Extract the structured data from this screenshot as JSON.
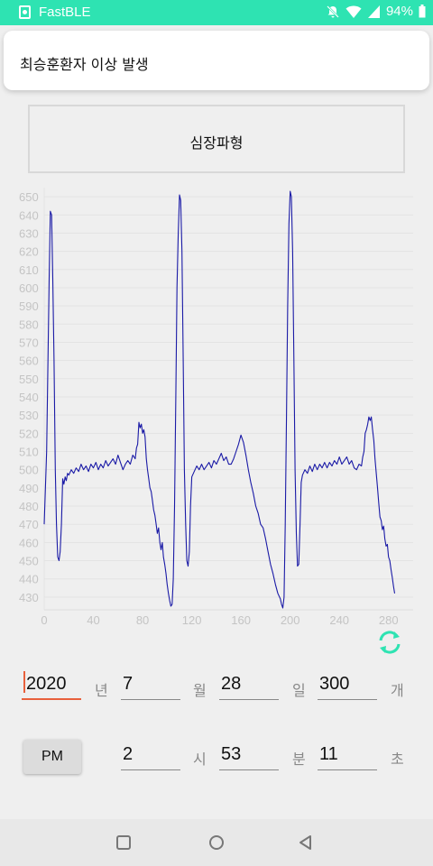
{
  "status_bar": {
    "app_name": "FastBLE",
    "battery": "94%",
    "icons": [
      "app-notification-icon",
      "mute-icon",
      "wifi-icon",
      "cellular-icon",
      "battery-icon"
    ],
    "color": "#2ee3b2"
  },
  "notification": {
    "text": "최승훈환자 이상 발생"
  },
  "title_box": {
    "label": "심장파형"
  },
  "chart_data": {
    "type": "line",
    "title": "",
    "xlabel": "",
    "ylabel": "",
    "xlim": [
      0,
      300
    ],
    "ylim": [
      423,
      655
    ],
    "x_ticks": [
      0,
      40,
      80,
      120,
      160,
      200,
      240,
      280
    ],
    "y_ticks": [
      430,
      440,
      450,
      460,
      470,
      480,
      490,
      500,
      510,
      520,
      530,
      540,
      550,
      560,
      570,
      580,
      590,
      600,
      610,
      620,
      630,
      640,
      650
    ],
    "grid": true,
    "line_color": "#1a1aa6",
    "series": [
      {
        "name": "",
        "points": [
          [
            0,
            470
          ],
          [
            2,
            510
          ],
          [
            4,
            605
          ],
          [
            5,
            642
          ],
          [
            6,
            640
          ],
          [
            7,
            605
          ],
          [
            8,
            560
          ],
          [
            9,
            500
          ],
          [
            10,
            470
          ],
          [
            11,
            452
          ],
          [
            12,
            450
          ],
          [
            13,
            455
          ],
          [
            14,
            470
          ],
          [
            15,
            495
          ],
          [
            16,
            492
          ],
          [
            17,
            496
          ],
          [
            18,
            494
          ],
          [
            19,
            498
          ],
          [
            20,
            497
          ],
          [
            22,
            500
          ],
          [
            24,
            498
          ],
          [
            26,
            501
          ],
          [
            28,
            499
          ],
          [
            30,
            503
          ],
          [
            32,
            500
          ],
          [
            34,
            502
          ],
          [
            36,
            499
          ],
          [
            38,
            503
          ],
          [
            40,
            501
          ],
          [
            42,
            504
          ],
          [
            44,
            500
          ],
          [
            46,
            503
          ],
          [
            48,
            501
          ],
          [
            50,
            505
          ],
          [
            52,
            502
          ],
          [
            54,
            504
          ],
          [
            56,
            506
          ],
          [
            58,
            503
          ],
          [
            60,
            508
          ],
          [
            62,
            504
          ],
          [
            64,
            500
          ],
          [
            66,
            503
          ],
          [
            68,
            505
          ],
          [
            70,
            503
          ],
          [
            72,
            508
          ],
          [
            74,
            506
          ],
          [
            75,
            512
          ],
          [
            76,
            514
          ],
          [
            77,
            526
          ],
          [
            78,
            523
          ],
          [
            79,
            525
          ],
          [
            80,
            520
          ],
          [
            81,
            522
          ],
          [
            82,
            518
          ],
          [
            83,
            506
          ],
          [
            84,
            500
          ],
          [
            85,
            495
          ],
          [
            86,
            490
          ],
          [
            87,
            488
          ],
          [
            88,
            483
          ],
          [
            89,
            478
          ],
          [
            90,
            475
          ],
          [
            91,
            470
          ],
          [
            92,
            465
          ],
          [
            93,
            468
          ],
          [
            94,
            460
          ],
          [
            95,
            456
          ],
          [
            96,
            460
          ],
          [
            97,
            452
          ],
          [
            98,
            448
          ],
          [
            99,
            443
          ],
          [
            100,
            437
          ],
          [
            101,
            432
          ],
          [
            102,
            428
          ],
          [
            103,
            425
          ],
          [
            104,
            426
          ],
          [
            105,
            440
          ],
          [
            106,
            480
          ],
          [
            107,
            540
          ],
          [
            108,
            600
          ],
          [
            109,
            630
          ],
          [
            110,
            651
          ],
          [
            111,
            648
          ],
          [
            112,
            620
          ],
          [
            113,
            560
          ],
          [
            114,
            500
          ],
          [
            115,
            470
          ],
          [
            116,
            450
          ],
          [
            117,
            447
          ],
          [
            118,
            455
          ],
          [
            119,
            480
          ],
          [
            120,
            496
          ],
          [
            122,
            499
          ],
          [
            124,
            502
          ],
          [
            126,
            500
          ],
          [
            128,
            503
          ],
          [
            130,
            500
          ],
          [
            132,
            502
          ],
          [
            134,
            504
          ],
          [
            136,
            501
          ],
          [
            138,
            505
          ],
          [
            140,
            503
          ],
          [
            142,
            506
          ],
          [
            144,
            509
          ],
          [
            146,
            505
          ],
          [
            148,
            507
          ],
          [
            150,
            503
          ],
          [
            152,
            503
          ],
          [
            154,
            506
          ],
          [
            156,
            510
          ],
          [
            158,
            514
          ],
          [
            160,
            519
          ],
          [
            162,
            515
          ],
          [
            164,
            508
          ],
          [
            166,
            500
          ],
          [
            168,
            493
          ],
          [
            170,
            487
          ],
          [
            172,
            480
          ],
          [
            174,
            476
          ],
          [
            176,
            470
          ],
          [
            178,
            468
          ],
          [
            180,
            462
          ],
          [
            182,
            455
          ],
          [
            184,
            448
          ],
          [
            186,
            443
          ],
          [
            188,
            437
          ],
          [
            190,
            432
          ],
          [
            192,
            429
          ],
          [
            193,
            426
          ],
          [
            194,
            424
          ],
          [
            195,
            430
          ],
          [
            196,
            470
          ],
          [
            197,
            530
          ],
          [
            198,
            590
          ],
          [
            199,
            635
          ],
          [
            200,
            653
          ],
          [
            201,
            650
          ],
          [
            202,
            620
          ],
          [
            203,
            560
          ],
          [
            204,
            500
          ],
          [
            205,
            465
          ],
          [
            206,
            447
          ],
          [
            207,
            448
          ],
          [
            208,
            470
          ],
          [
            209,
            493
          ],
          [
            210,
            497
          ],
          [
            212,
            500
          ],
          [
            214,
            498
          ],
          [
            216,
            502
          ],
          [
            218,
            499
          ],
          [
            220,
            503
          ],
          [
            222,
            500
          ],
          [
            224,
            503
          ],
          [
            226,
            501
          ],
          [
            228,
            504
          ],
          [
            230,
            501
          ],
          [
            232,
            504
          ],
          [
            234,
            502
          ],
          [
            236,
            505
          ],
          [
            238,
            503
          ],
          [
            240,
            507
          ],
          [
            242,
            503
          ],
          [
            244,
            505
          ],
          [
            246,
            507
          ],
          [
            248,
            503
          ],
          [
            250,
            505
          ],
          [
            252,
            501
          ],
          [
            254,
            500
          ],
          [
            256,
            503
          ],
          [
            258,
            502
          ],
          [
            259,
            507
          ],
          [
            260,
            510
          ],
          [
            261,
            520
          ],
          [
            262,
            522
          ],
          [
            263,
            525
          ],
          [
            264,
            529
          ],
          [
            265,
            527
          ],
          [
            266,
            529
          ],
          [
            267,
            522
          ],
          [
            268,
            516
          ],
          [
            269,
            506
          ],
          [
            270,
            498
          ],
          [
            271,
            490
          ],
          [
            272,
            482
          ],
          [
            273,
            474
          ],
          [
            274,
            472
          ],
          [
            275,
            467
          ],
          [
            276,
            469
          ],
          [
            277,
            462
          ],
          [
            278,
            458
          ],
          [
            279,
            459
          ],
          [
            280,
            452
          ],
          [
            281,
            450
          ],
          [
            282,
            445
          ],
          [
            283,
            441
          ],
          [
            284,
            436
          ],
          [
            285,
            432
          ]
        ]
      }
    ]
  },
  "datetime": {
    "year": "2020",
    "year_unit": "년",
    "month": "7",
    "month_unit": "월",
    "day": "28",
    "day_unit": "일",
    "count": "300",
    "count_unit": "개",
    "ampm": "PM",
    "hour": "2",
    "hour_unit": "시",
    "minute": "53",
    "minute_unit": "분",
    "second": "11",
    "second_unit": "초"
  },
  "nav": {
    "icons": [
      "recents-icon",
      "home-icon",
      "back-icon"
    ]
  }
}
